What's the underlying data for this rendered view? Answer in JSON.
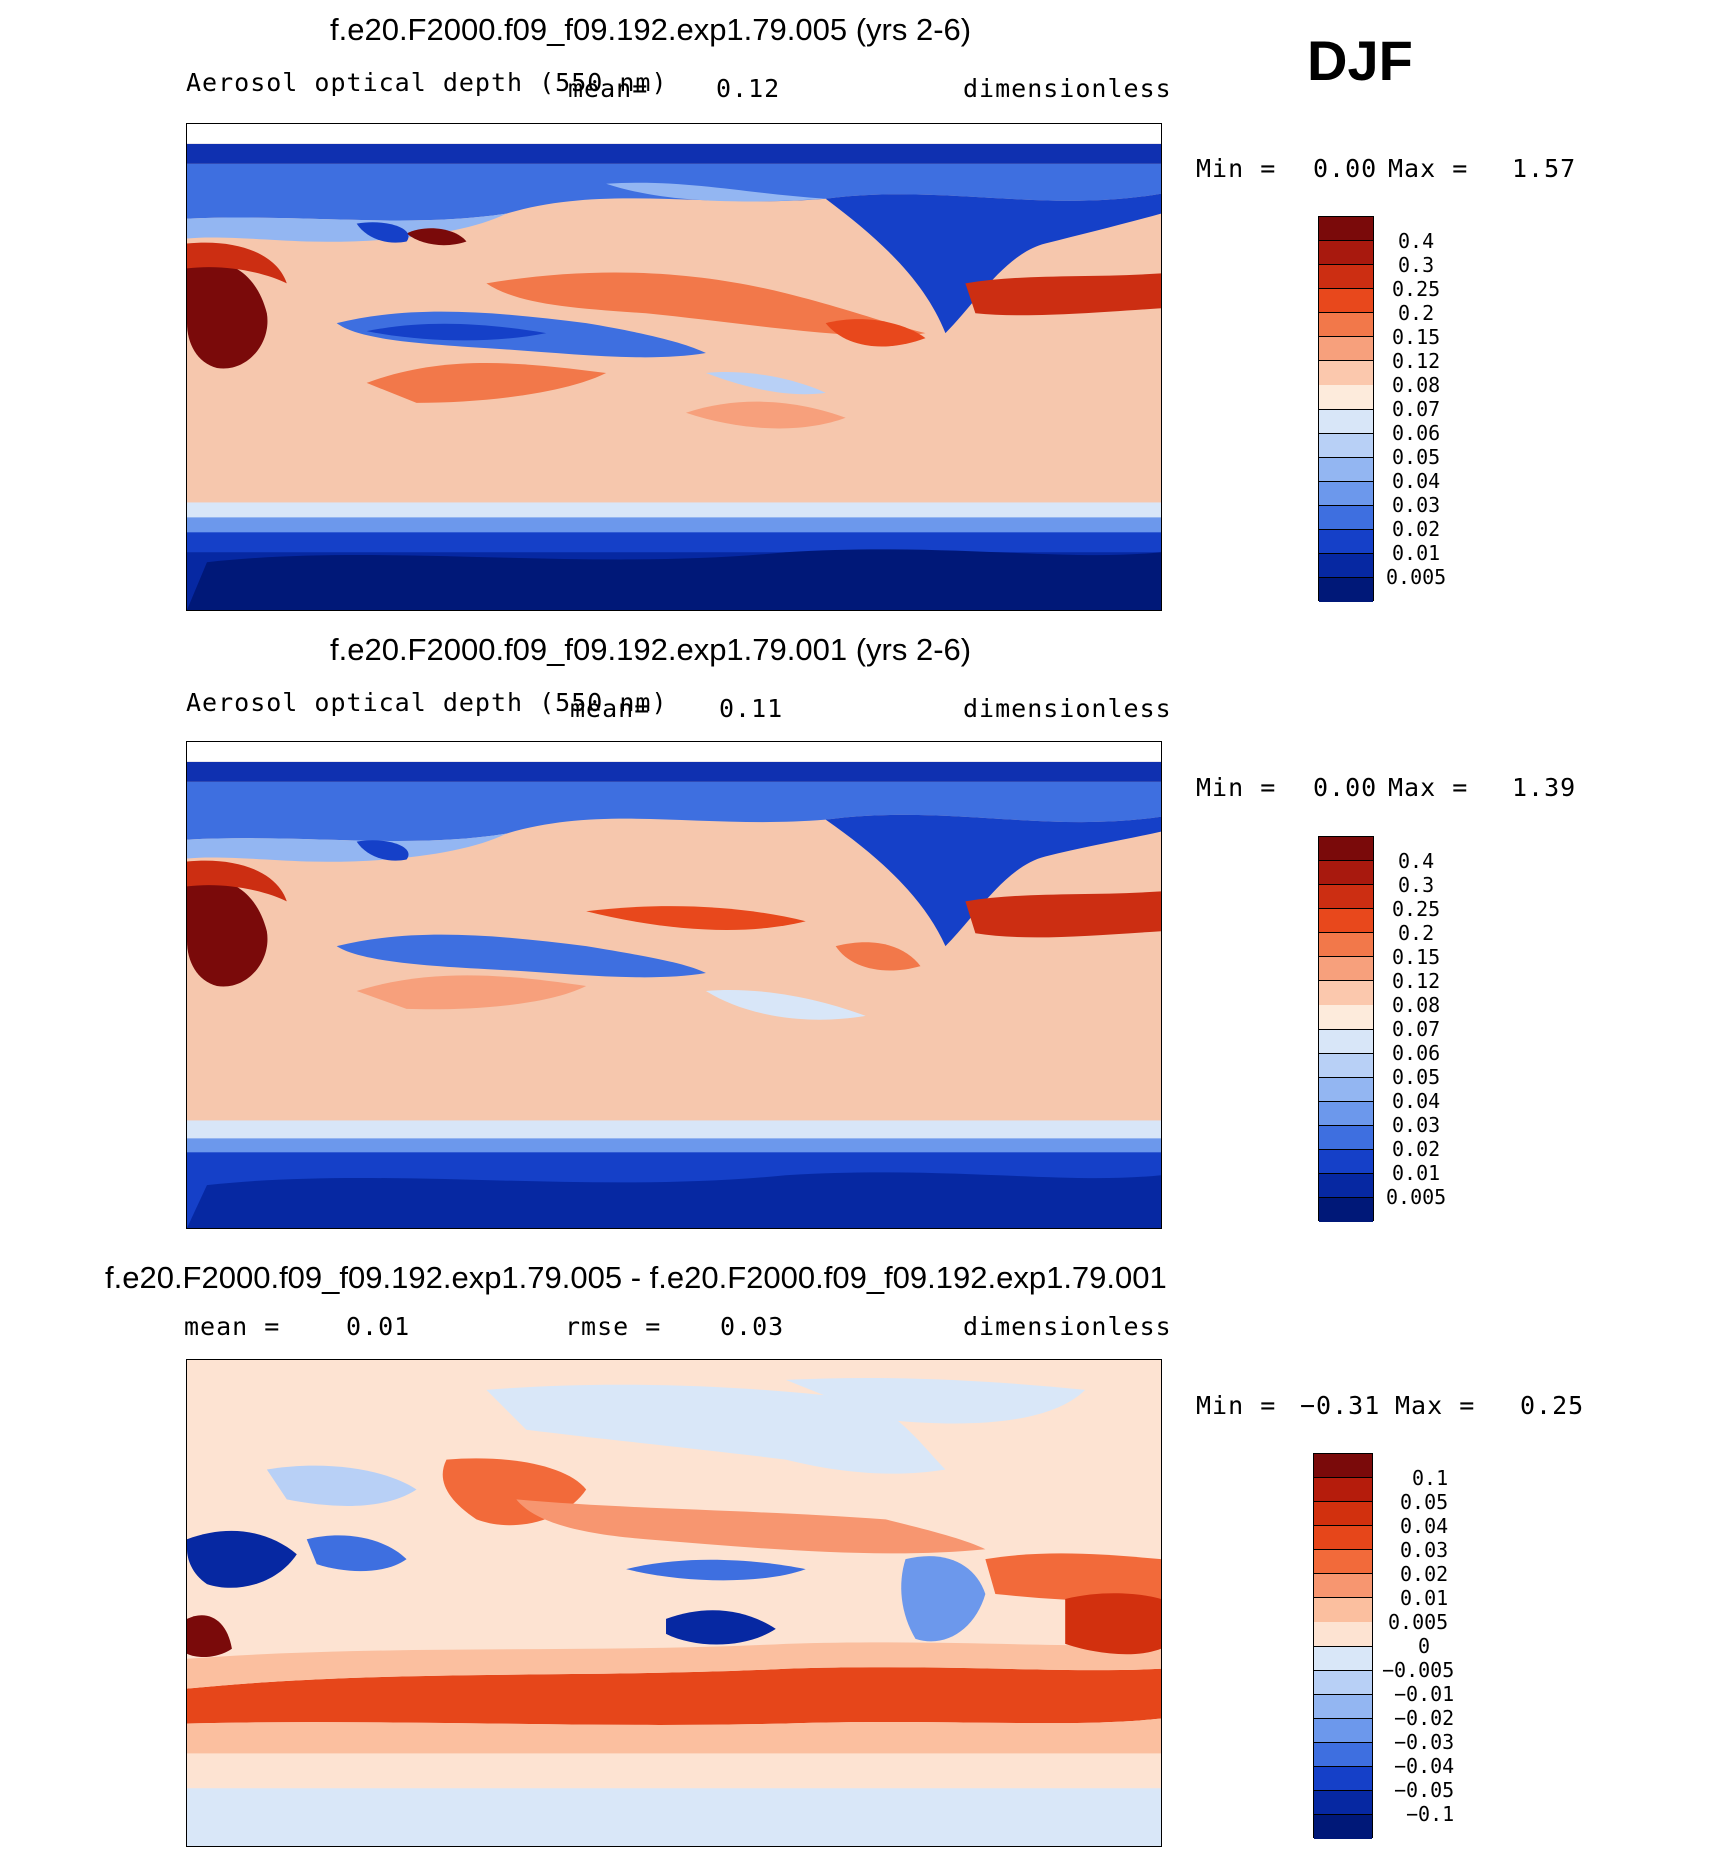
{
  "season": "DJF",
  "panels": [
    {
      "title": "f.e20.F2000.f09_f09.192.exp1.79.005 (yrs 2-6)",
      "left_label": "Aerosol optical depth (550 nm)",
      "mean_label": "mean=",
      "mean_value": "0.12",
      "units": "dimensionless",
      "min_label": "Min =",
      "min_value": "0.00",
      "max_label": "Max =",
      "max_value": "1.57",
      "colorbar_labels": [
        "0.4",
        "0.3",
        "0.25",
        "0.2",
        "0.15",
        "0.12",
        "0.08",
        "0.07",
        "0.06",
        "0.05",
        "0.04",
        "0.03",
        "0.02",
        "0.01",
        "0.005"
      ]
    },
    {
      "title": "f.e20.F2000.f09_f09.192.exp1.79.001 (yrs 2-6)",
      "left_label": "Aerosol optical depth (550 nm)",
      "mean_label": "mean=",
      "mean_value": "0.11",
      "units": "dimensionless",
      "min_label": "Min =",
      "min_value": "0.00",
      "max_label": "Max =",
      "max_value": "1.39",
      "colorbar_labels": [
        "0.4",
        "0.3",
        "0.25",
        "0.2",
        "0.15",
        "0.12",
        "0.08",
        "0.07",
        "0.06",
        "0.05",
        "0.04",
        "0.03",
        "0.02",
        "0.01",
        "0.005"
      ]
    },
    {
      "title": "f.e20.F2000.f09_f09.192.exp1.79.005 - f.e20.F2000.f09_f09.192.exp1.79.001",
      "mean_label": "mean =",
      "mean_value": "0.01",
      "rmse_label": "rmse =",
      "rmse_value": "0.03",
      "units": "dimensionless",
      "min_label": "Min =",
      "min_value": "−0.31",
      "max_label": "Max =",
      "max_value": "0.25",
      "colorbar_labels": [
        "0.1",
        "0.05",
        "0.04",
        "0.03",
        "0.02",
        "0.01",
        "0.005",
        "0",
        "−0.005",
        "−0.01",
        "−0.02",
        "−0.03",
        "−0.04",
        "−0.05",
        "−0.1"
      ]
    }
  ],
  "colorbar_colors_abs": [
    "#7a0a0a",
    "#a8190e",
    "#cc2e12",
    "#e8481c",
    "#f2784a",
    "#f7a07c",
    "#fbc8ad",
    "#fdebdc",
    "#d8e6f8",
    "#b8d0f6",
    "#93b6f2",
    "#6c98ec",
    "#3e6fe0",
    "#1540c8",
    "#0628a2",
    "#001878"
  ],
  "colorbar_colors_diff": [
    "#7a0a0a",
    "#b51c0c",
    "#d2300e",
    "#e6461a",
    "#f26a3a",
    "#f79670",
    "#fbbf9f",
    "#fde3d2",
    "#d9e7f8",
    "#b8d0f6",
    "#93b6f2",
    "#6c98ec",
    "#3e6fe0",
    "#1540c8",
    "#0628a2",
    "#001878"
  ]
}
